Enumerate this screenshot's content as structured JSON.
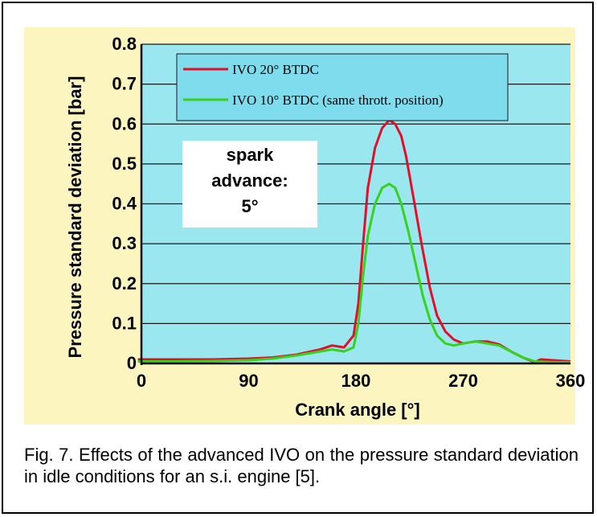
{
  "chart_data": {
    "type": "line",
    "xlabel": "Crank angle [°]",
    "ylabel": "Pressure standard deviation [bar]",
    "xlim": [
      0,
      360
    ],
    "ylim": [
      0,
      0.8
    ],
    "x_ticks": [
      "0",
      "90",
      "180",
      "270",
      "360"
    ],
    "y_ticks": [
      "0",
      "0.1",
      "0.2",
      "0.3",
      "0.4",
      "0.5",
      "0.6",
      "0.7",
      "0.8"
    ],
    "grid": "horizontal",
    "legend_position": "top",
    "annotation": [
      "spark",
      "advance:",
      "5°"
    ],
    "series": [
      {
        "name": "IVO 20° BTDC",
        "color": "#e0102a",
        "x": [
          -3,
          0,
          30,
          60,
          90,
          110,
          130,
          150,
          160,
          170,
          178,
          182,
          186,
          190,
          196,
          202,
          208,
          213,
          218,
          222,
          228,
          235,
          242,
          248,
          255,
          262,
          270,
          280,
          290,
          300,
          310,
          320,
          330,
          335,
          345,
          360
        ],
        "y": [
          0.01,
          0.01,
          0.01,
          0.01,
          0.012,
          0.015,
          0.022,
          0.035,
          0.045,
          0.04,
          0.07,
          0.15,
          0.3,
          0.44,
          0.54,
          0.59,
          0.61,
          0.6,
          0.57,
          0.52,
          0.42,
          0.3,
          0.19,
          0.12,
          0.08,
          0.06,
          0.05,
          0.055,
          0.055,
          0.048,
          0.03,
          0.015,
          0.003,
          0.01,
          0.008,
          0.005
        ]
      },
      {
        "name": "IVO 10° BTDC (same thrott. position)",
        "color": "#38d11e",
        "x": [
          -3,
          0,
          30,
          60,
          90,
          110,
          130,
          150,
          160,
          170,
          178,
          182,
          186,
          190,
          196,
          202,
          208,
          213,
          218,
          224,
          230,
          236,
          242,
          248,
          255,
          262,
          270,
          280,
          290,
          300,
          310,
          320,
          330,
          345,
          360
        ],
        "y": [
          0.005,
          0.005,
          0.005,
          0.006,
          0.008,
          0.012,
          0.02,
          0.03,
          0.035,
          0.03,
          0.04,
          0.1,
          0.22,
          0.32,
          0.4,
          0.44,
          0.45,
          0.44,
          0.4,
          0.33,
          0.25,
          0.17,
          0.11,
          0.07,
          0.05,
          0.045,
          0.05,
          0.055,
          0.05,
          0.045,
          0.03,
          0.015,
          0.005,
          0.003,
          0.003
        ]
      }
    ]
  },
  "caption": "Fig. 7. Effects of the advanced IVO on the pressure standard deviation in idle conditions for an s.i. engine [5].",
  "colors": {
    "plot_bg": "#9be7f0",
    "panel_bg": "#fdf5bf",
    "legend_bg": "#7fdcec"
  }
}
